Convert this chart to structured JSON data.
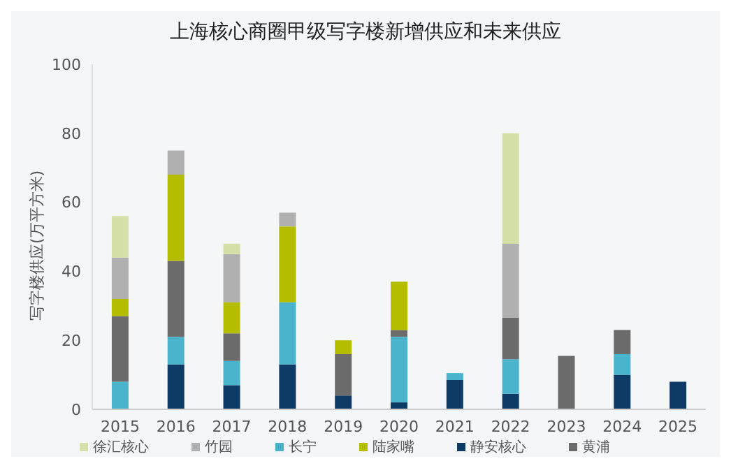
{
  "chart_data": {
    "type": "bar",
    "title": "上海核心商圈甲级写字楼新增供应和未来供应",
    "ylabel": "写字楼供应(万平方米)",
    "categories": [
      "2015",
      "2016",
      "2017",
      "2018",
      "2019",
      "2020",
      "2021",
      "2022",
      "2023",
      "2024",
      "2025"
    ],
    "stacked": true,
    "ylim": [
      0,
      100
    ],
    "yticks": [
      0,
      20,
      40,
      60,
      80,
      100
    ],
    "grid": false,
    "legend": "bottom",
    "series": [
      {
        "name": "静安核心",
        "color": "#0e3a66",
        "values": [
          0,
          13,
          7,
          13,
          4,
          2,
          8.5,
          4.5,
          0,
          10,
          8
        ]
      },
      {
        "name": "长宁",
        "color": "#4ab4cc",
        "values": [
          8,
          8,
          7,
          18,
          0,
          19,
          2,
          10,
          0,
          6,
          0
        ]
      },
      {
        "name": "黄浦",
        "color": "#6b6b6b",
        "values": [
          19,
          22,
          8,
          0,
          12,
          2,
          0,
          12,
          15.5,
          7,
          0
        ]
      },
      {
        "name": "陆家嘴",
        "color": "#b5bd00",
        "values": [
          5,
          25,
          9,
          22,
          4,
          14,
          0,
          0,
          0,
          0,
          0
        ]
      },
      {
        "name": "竹园",
        "color": "#b0b0b0",
        "values": [
          12,
          7,
          14,
          4,
          0,
          0,
          0,
          21.5,
          0,
          0,
          0
        ]
      },
      {
        "name": "徐汇核心",
        "color": "#d5dfa8",
        "values": [
          12,
          0,
          3,
          0,
          0,
          0,
          0,
          32,
          0,
          0,
          0
        ]
      }
    ]
  }
}
